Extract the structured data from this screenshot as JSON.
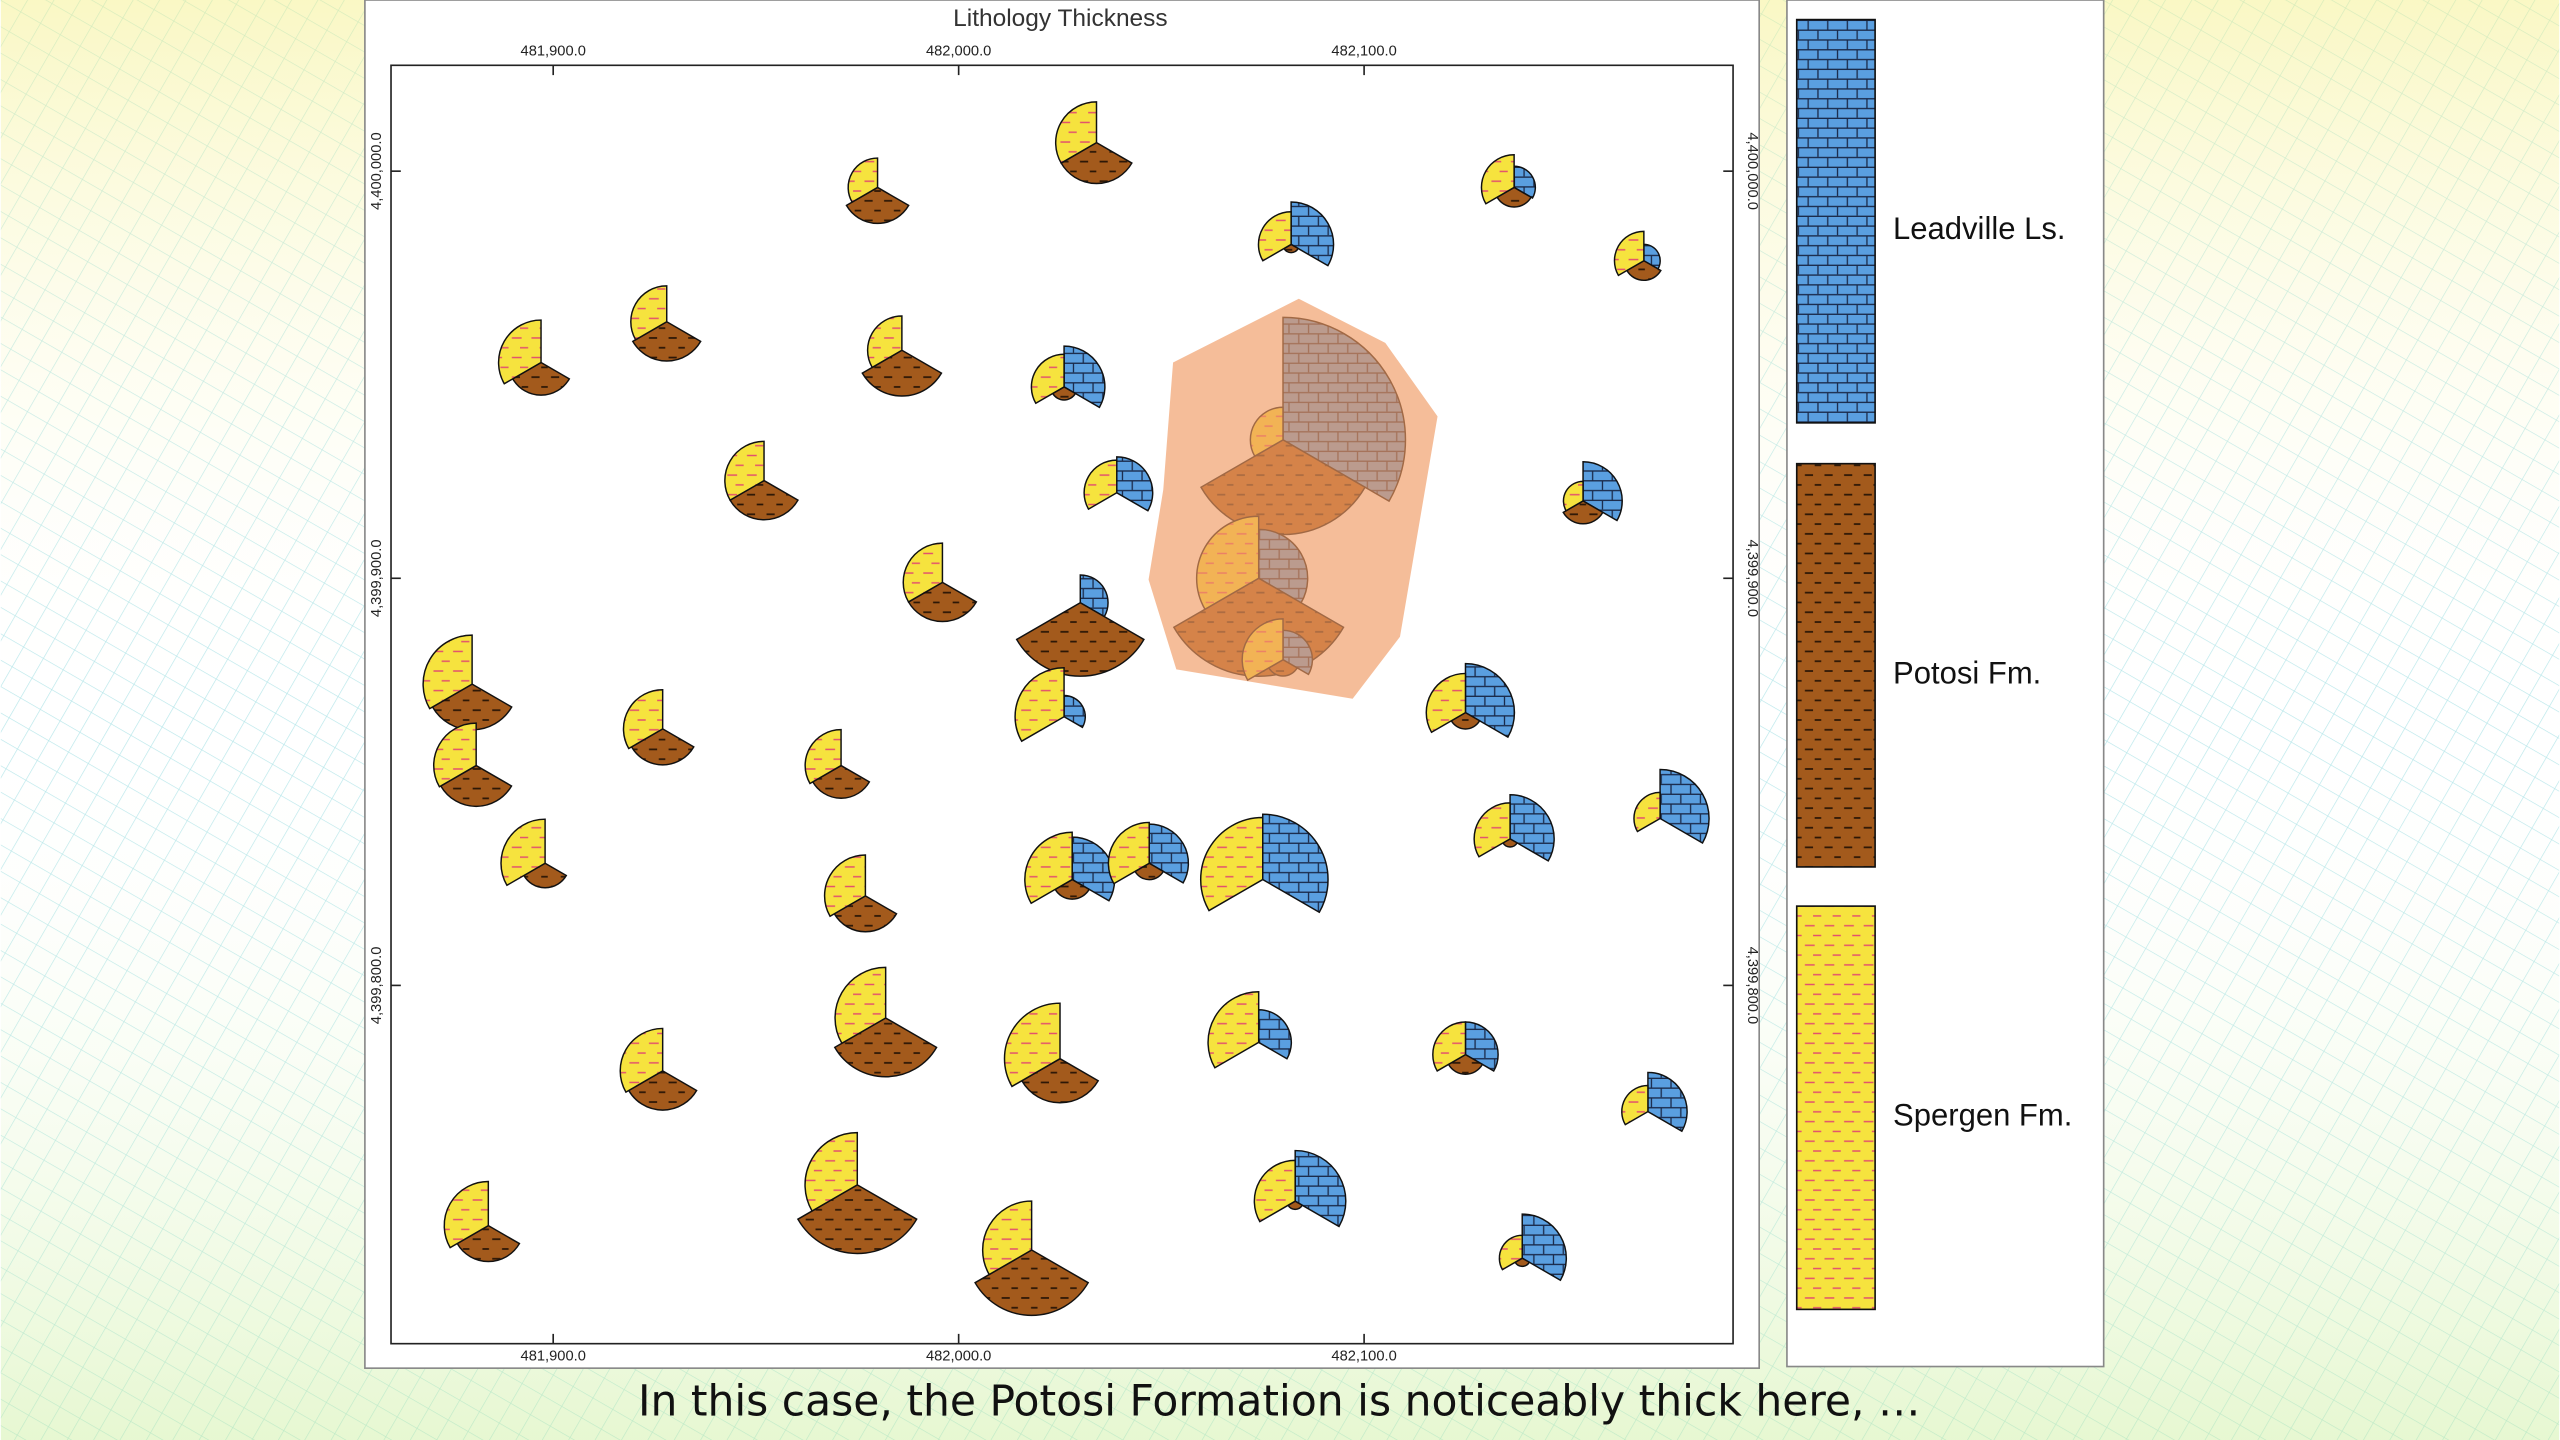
{
  "chart_data": {
    "type": "map",
    "title": "Lithology Thickness",
    "caption": "In this case, the Potosi Formation is noticeably thick here, …",
    "xlim": [
      481860,
      482191
    ],
    "ylim": [
      4399712,
      4400026
    ],
    "xticks": [
      {
        "value": 481900,
        "label": "481,900.0"
      },
      {
        "value": 482000,
        "label": "482,000.0"
      },
      {
        "value": 482100,
        "label": "482,100.0"
      }
    ],
    "yticks": [
      {
        "value": 4399800,
        "label": "4,399,800.0"
      },
      {
        "value": 4399900,
        "label": "4,399,900.0"
      },
      {
        "value": 4400000,
        "label": "4,400,000.0"
      }
    ],
    "x": [
      482034,
      481980,
      482137,
      482082,
      482169,
      481928,
      481897,
      481986,
      482026,
      482080,
      481952,
      482039,
      482154,
      481996,
      482074,
      482030,
      482080,
      481880,
      482026,
      482125,
      481927,
      481881,
      481971,
      482173,
      482136,
      481898,
      481977,
      482028,
      482047,
      482075,
      481982,
      482025,
      482074,
      481927,
      482125,
      482170,
      481975,
      481884,
      482018,
      482083,
      482139
    ],
    "y": [
      4400007,
      4399996,
      4399996,
      4399982,
      4399978,
      4399963,
      4399953,
      4399956,
      4399947,
      4399934,
      4399924,
      4399921,
      4399919,
      4399899,
      4399900,
      4399894,
      4399880,
      4399874,
      4399866,
      4399867,
      4399863,
      4399854,
      4399854,
      4399841,
      4399836,
      4399830,
      4399822,
      4399826,
      4399830,
      4399826,
      4399792,
      4399782,
      4399786,
      4399779,
      4399783,
      4399769,
      4399751,
      4399741,
      4399735,
      4399747,
      4399733
    ],
    "series": [
      {
        "name": "Leadville Ls.",
        "color": "#5a9fe0",
        "values": [
          0,
          0,
          13,
          26,
          10,
          0,
          0,
          0,
          25,
          75,
          0,
          22,
          24,
          0,
          30,
          17,
          18,
          0,
          13,
          30,
          0,
          0,
          0,
          30,
          27,
          0,
          0,
          26,
          24,
          40,
          0,
          0,
          20,
          0,
          20,
          24,
          0,
          0,
          0,
          31,
          27
        ]
      },
      {
        "name": "Potosi Fm.",
        "color": "#a35a1c",
        "values": [
          25,
          22,
          12,
          5,
          12,
          24,
          20,
          28,
          8,
          58,
          24,
          0,
          14,
          24,
          60,
          45,
          10,
          28,
          0,
          10,
          22,
          25,
          20,
          0,
          5,
          15,
          22,
          12,
          10,
          0,
          36,
          27,
          0,
          24,
          12,
          0,
          42,
          22,
          40,
          5,
          5
        ]
      },
      {
        "name": "Spergen Fm.",
        "color": "#f6e33e",
        "values": [
          25,
          18,
          20,
          20,
          18,
          22,
          26,
          21,
          20,
          20,
          24,
          20,
          12,
          24,
          38,
          0,
          25,
          30,
          30,
          24,
          24,
          26,
          22,
          16,
          22,
          27,
          25,
          29,
          25,
          38,
          31,
          34,
          31,
          26,
          20,
          16,
          32,
          27,
          30,
          25,
          14
        ]
      }
    ]
  }
}
